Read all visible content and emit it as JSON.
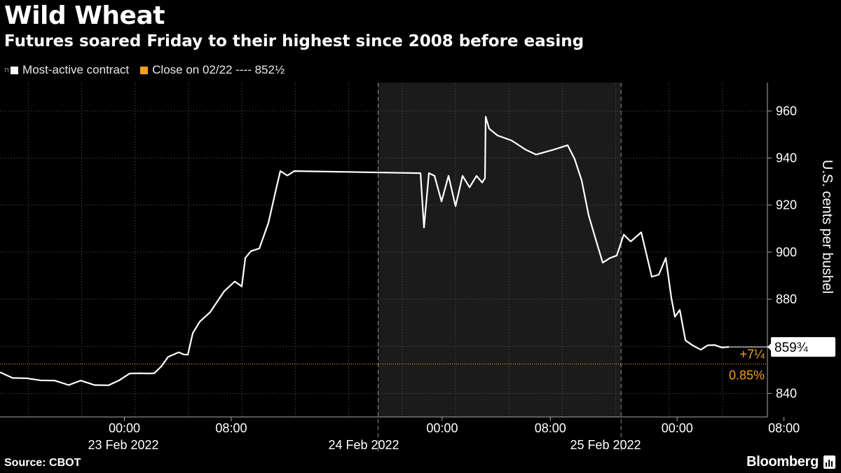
{
  "title": "Wild Wheat",
  "subtitle": "Futures soared Friday to their highest since 2008 before easing",
  "legend": {
    "series_label": "Most-active contract",
    "close_label": "Close on 02/22 ---- 852½"
  },
  "source": "Source: CBOT",
  "brand": "Bloomberg",
  "colors": {
    "series": "#ffffff",
    "close": "#f39f1e",
    "shade": "#1b1b1b"
  },
  "chart_data": {
    "type": "line",
    "title": "Wild Wheat",
    "ylabel": "U.S. cents per bushel",
    "ylim": [
      830,
      972
    ],
    "yticks": [
      840,
      860,
      880,
      900,
      920,
      940,
      960
    ],
    "x_time_labels": [
      "00:00",
      "08:00",
      "00:00",
      "08:00",
      "00:00",
      "08:00"
    ],
    "x_date_labels": [
      "23 Feb 2022",
      "24 Feb 2022",
      "25 Feb 2022"
    ],
    "shaded_day": "24 Feb 2022",
    "reference_line": {
      "label": "Close on 02/22",
      "value": 852.5,
      "display": "852½"
    },
    "last_value": {
      "value": 859.75,
      "display": "859¾"
    },
    "change": {
      "abs": "+7¼",
      "pct": "0.85%"
    },
    "series": [
      {
        "name": "Most-active contract",
        "x": [
          "02/22 18:00",
          "02/22 19:00",
          "02/22 20:00",
          "02/22 21:00",
          "02/22 22:00",
          "02/22 23:00",
          "02/23 00:00",
          "02/23 01:00",
          "02/23 02:00",
          "02/23 03:00",
          "02/23 04:00",
          "02/23 05:00",
          "02/23 06:00",
          "02/23 07:00",
          "02/23 08:00",
          "02/23 08:30",
          "02/23 09:00",
          "02/23 09:30",
          "02/23 10:00",
          "02/23 10:30",
          "02/23 11:00",
          "02/23 12:00",
          "02/23 13:00",
          "02/23 13:15",
          "02/23 13:30",
          "02/23 17:00",
          "02/23 18:00",
          "02/23 19:00",
          "02/23 20:00",
          "02/23 21:00",
          "02/23 22:00",
          "02/23 23:00",
          "02/24 00:00",
          "02/24 08:00",
          "02/24 09:00",
          "02/24 09:30",
          "02/24 10:00",
          "02/24 10:30",
          "02/24 11:00",
          "02/24 11:30",
          "02/24 12:00",
          "02/24 12:30",
          "02/24 13:00",
          "02/24 13:15",
          "02/24 13:30",
          "02/24 17:00",
          "02/24 17:15",
          "02/24 18:00",
          "02/24 19:00",
          "02/24 20:00",
          "02/24 21:00",
          "02/24 22:00",
          "02/24 23:00",
          "02/25 00:00",
          "02/25 01:00",
          "02/25 02:00",
          "02/25 02:30",
          "02/25 03:00",
          "02/25 03:30",
          "02/25 04:00",
          "02/25 05:00",
          "02/25 06:00",
          "02/25 07:00",
          "02/25 08:00",
          "02/25 08:30",
          "02/25 09:00",
          "02/25 09:30",
          "02/25 09:45",
          "02/25 10:00",
          "02/25 10:30",
          "02/25 11:00",
          "02/25 11:30",
          "02/25 12:00",
          "02/25 12:30",
          "02/25 13:00",
          "02/25 13:20"
        ],
        "y": [
          849,
          847,
          846,
          846,
          845,
          844,
          845,
          844,
          843,
          846,
          848,
          849,
          848,
          849,
          851,
          856,
          857,
          857,
          856,
          866,
          870,
          875,
          883,
          888,
          885,
          898,
          900,
          902,
          912,
          926,
          934,
          933,
          934,
          934,
          910,
          934,
          932,
          922,
          932,
          920,
          932,
          928,
          932,
          930,
          931,
          958,
          952,
          950,
          947,
          944,
          941,
          944,
          945,
          940,
          930,
          916,
          905,
          896,
          897,
          899,
          907,
          905,
          908,
          890,
          890,
          898,
          880,
          873,
          875,
          863,
          860,
          859,
          860,
          861,
          859.5,
          859.75
        ]
      }
    ]
  }
}
